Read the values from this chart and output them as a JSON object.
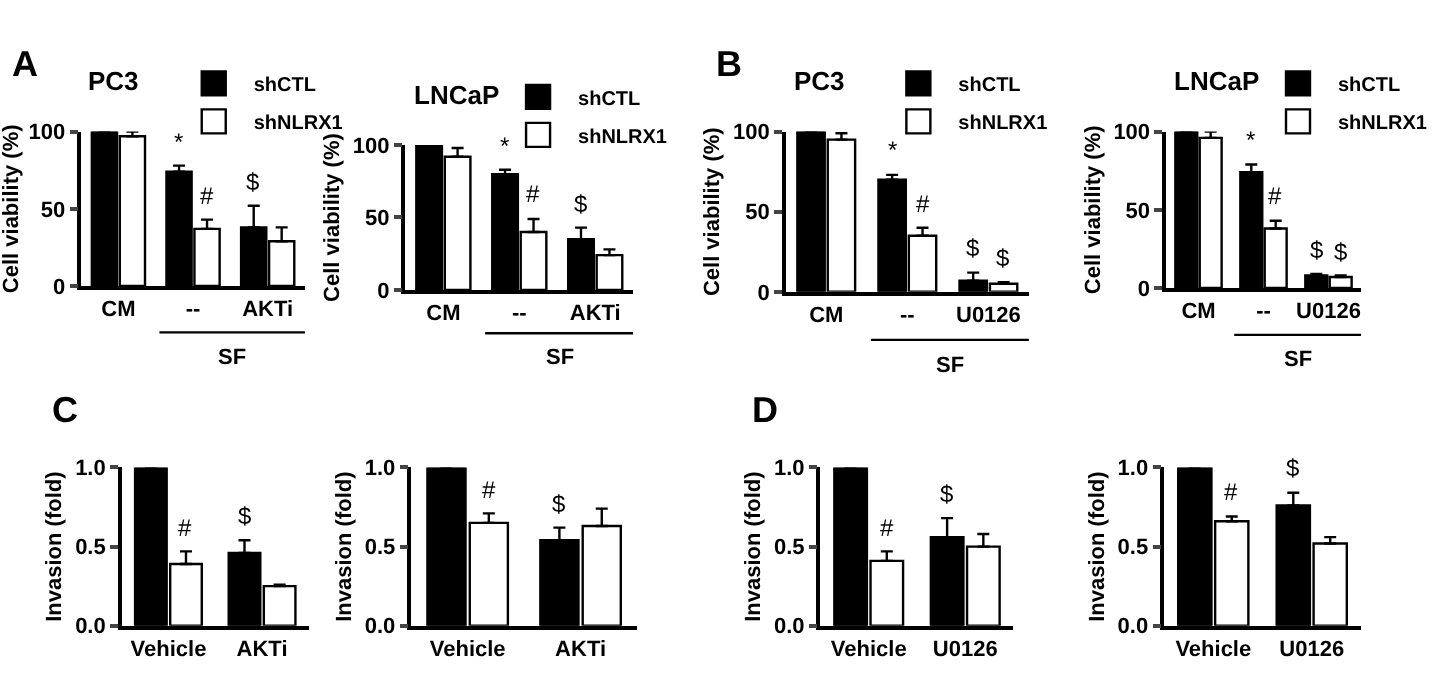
{
  "chart_data": [
    {
      "type": "bar",
      "title": "PC3",
      "ylabel": "Cell viability (%)",
      "categories": [
        "CM",
        "--",
        "AKTi"
      ],
      "ylim": [
        0,
        100
      ],
      "yticks": [
        0,
        50,
        100
      ],
      "legend": "top",
      "series": [
        {
          "name": "shCTL",
          "color": "#000000",
          "values": [
            100,
            74,
            38
          ],
          "errors": [
            null,
            4,
            14
          ]
        },
        {
          "name": "shNLRX1",
          "color": "#ffffff",
          "values": [
            97,
            37,
            29
          ],
          "errors": [
            3,
            6,
            9
          ]
        }
      ],
      "annotations": [
        "A",
        "*",
        "#",
        "$",
        "SF"
      ]
    },
    {
      "type": "bar",
      "title": "LNCaP",
      "ylabel": "Cell viability (%)",
      "categories": [
        "CM",
        "--",
        "AKTi"
      ],
      "ylim": [
        0,
        100
      ],
      "yticks": [
        0,
        50,
        100
      ],
      "legend": "top",
      "series": [
        {
          "name": "shCTL",
          "color": "#000000",
          "values": [
            100,
            80,
            35
          ],
          "errors": [
            null,
            3,
            8
          ]
        },
        {
          "name": "shNLRX1",
          "color": "#ffffff",
          "values": [
            92,
            40,
            24
          ],
          "errors": [
            6,
            9,
            4
          ]
        }
      ],
      "annotations": [
        "*",
        "#",
        "$",
        "SF"
      ]
    },
    {
      "type": "bar",
      "title": "PC3",
      "ylabel": "Cell viability (%)",
      "categories": [
        "CM",
        "--",
        "U0126"
      ],
      "ylim": [
        0,
        100
      ],
      "yticks": [
        0,
        50,
        100
      ],
      "legend": "top",
      "series": [
        {
          "name": "shCTL",
          "color": "#000000",
          "values": [
            100,
            70,
            7
          ],
          "errors": [
            null,
            3,
            5
          ]
        },
        {
          "name": "shNLRX1",
          "color": "#ffffff",
          "values": [
            95,
            35,
            5
          ],
          "errors": [
            4,
            5,
            1
          ]
        }
      ],
      "annotations": [
        "B",
        "*",
        "#",
        "$",
        "$",
        "SF"
      ]
    },
    {
      "type": "bar",
      "title": "LNCaP",
      "ylabel": "Cell viability (%)",
      "categories": [
        "CM",
        "--",
        "U0126"
      ],
      "ylim": [
        0,
        100
      ],
      "yticks": [
        0,
        50,
        100
      ],
      "legend": "top",
      "series": [
        {
          "name": "shCTL",
          "color": "#000000",
          "values": [
            100,
            74,
            8
          ],
          "errors": [
            null,
            5,
            1
          ]
        },
        {
          "name": "shNLRX1",
          "color": "#ffffff",
          "values": [
            96,
            38,
            7
          ],
          "errors": [
            4,
            5,
            1
          ]
        }
      ],
      "annotations": [
        "*",
        "#",
        "$",
        "$",
        "SF"
      ]
    },
    {
      "type": "bar",
      "ylabel": "Invasion (fold)",
      "categories": [
        "Vehicle",
        "AKTi"
      ],
      "ylim": [
        0,
        1
      ],
      "yticks": [
        {
          "value": 0,
          "label": "0.0"
        },
        {
          "value": 0.5,
          "label": "0.5"
        },
        {
          "value": 1,
          "label": "1.0"
        }
      ],
      "series": [
        {
          "color": "#000000",
          "values": [
            1.0,
            0.46
          ],
          "errors": [
            null,
            0.08
          ]
        },
        {
          "color": "#ffffff",
          "values": [
            0.39,
            0.25
          ],
          "errors": [
            0.08,
            0.01
          ]
        }
      ],
      "annotations": [
        "C",
        "#",
        "$"
      ]
    },
    {
      "type": "bar",
      "ylabel": "Invasion (fold)",
      "categories": [
        "Vehicle",
        "AKTi"
      ],
      "ylim": [
        0,
        1
      ],
      "yticks": [
        {
          "value": 0,
          "label": "0.0"
        },
        {
          "value": 0.5,
          "label": "0.5"
        },
        {
          "value": 1,
          "label": "1.0"
        }
      ],
      "series": [
        {
          "color": "#000000",
          "values": [
            1.0,
            0.54
          ],
          "errors": [
            null,
            0.08
          ]
        },
        {
          "color": "#ffffff",
          "values": [
            0.65,
            0.63
          ],
          "errors": [
            0.06,
            0.11
          ]
        }
      ],
      "annotations": [
        "#",
        "$"
      ]
    },
    {
      "type": "bar",
      "ylabel": "Invasion (fold)",
      "categories": [
        "Vehicle",
        "U0126"
      ],
      "ylim": [
        0,
        1
      ],
      "yticks": [
        {
          "value": 0,
          "label": "0.0"
        },
        {
          "value": 0.5,
          "label": "0.5"
        },
        {
          "value": 1,
          "label": "1.0"
        }
      ],
      "series": [
        {
          "color": "#000000",
          "values": [
            1.0,
            0.56
          ],
          "errors": [
            null,
            0.12
          ]
        },
        {
          "color": "#ffffff",
          "values": [
            0.41,
            0.5
          ],
          "errors": [
            0.06,
            0.08
          ]
        }
      ],
      "annotations": [
        "D",
        "#",
        "$"
      ]
    },
    {
      "type": "bar",
      "ylabel": "Invasion (fold)",
      "categories": [
        "Vehicle",
        "U0126"
      ],
      "ylim": [
        0,
        1
      ],
      "yticks": [
        {
          "value": 0,
          "label": "0.0"
        },
        {
          "value": 0.5,
          "label": "0.5"
        },
        {
          "value": 1,
          "label": "1.0"
        }
      ],
      "series": [
        {
          "color": "#000000",
          "values": [
            1.0,
            0.76
          ],
          "errors": [
            null,
            0.08
          ]
        },
        {
          "color": "#ffffff",
          "values": [
            0.66,
            0.52
          ],
          "errors": [
            0.03,
            0.04
          ]
        }
      ],
      "annotations": [
        "#",
        "$"
      ]
    }
  ]
}
